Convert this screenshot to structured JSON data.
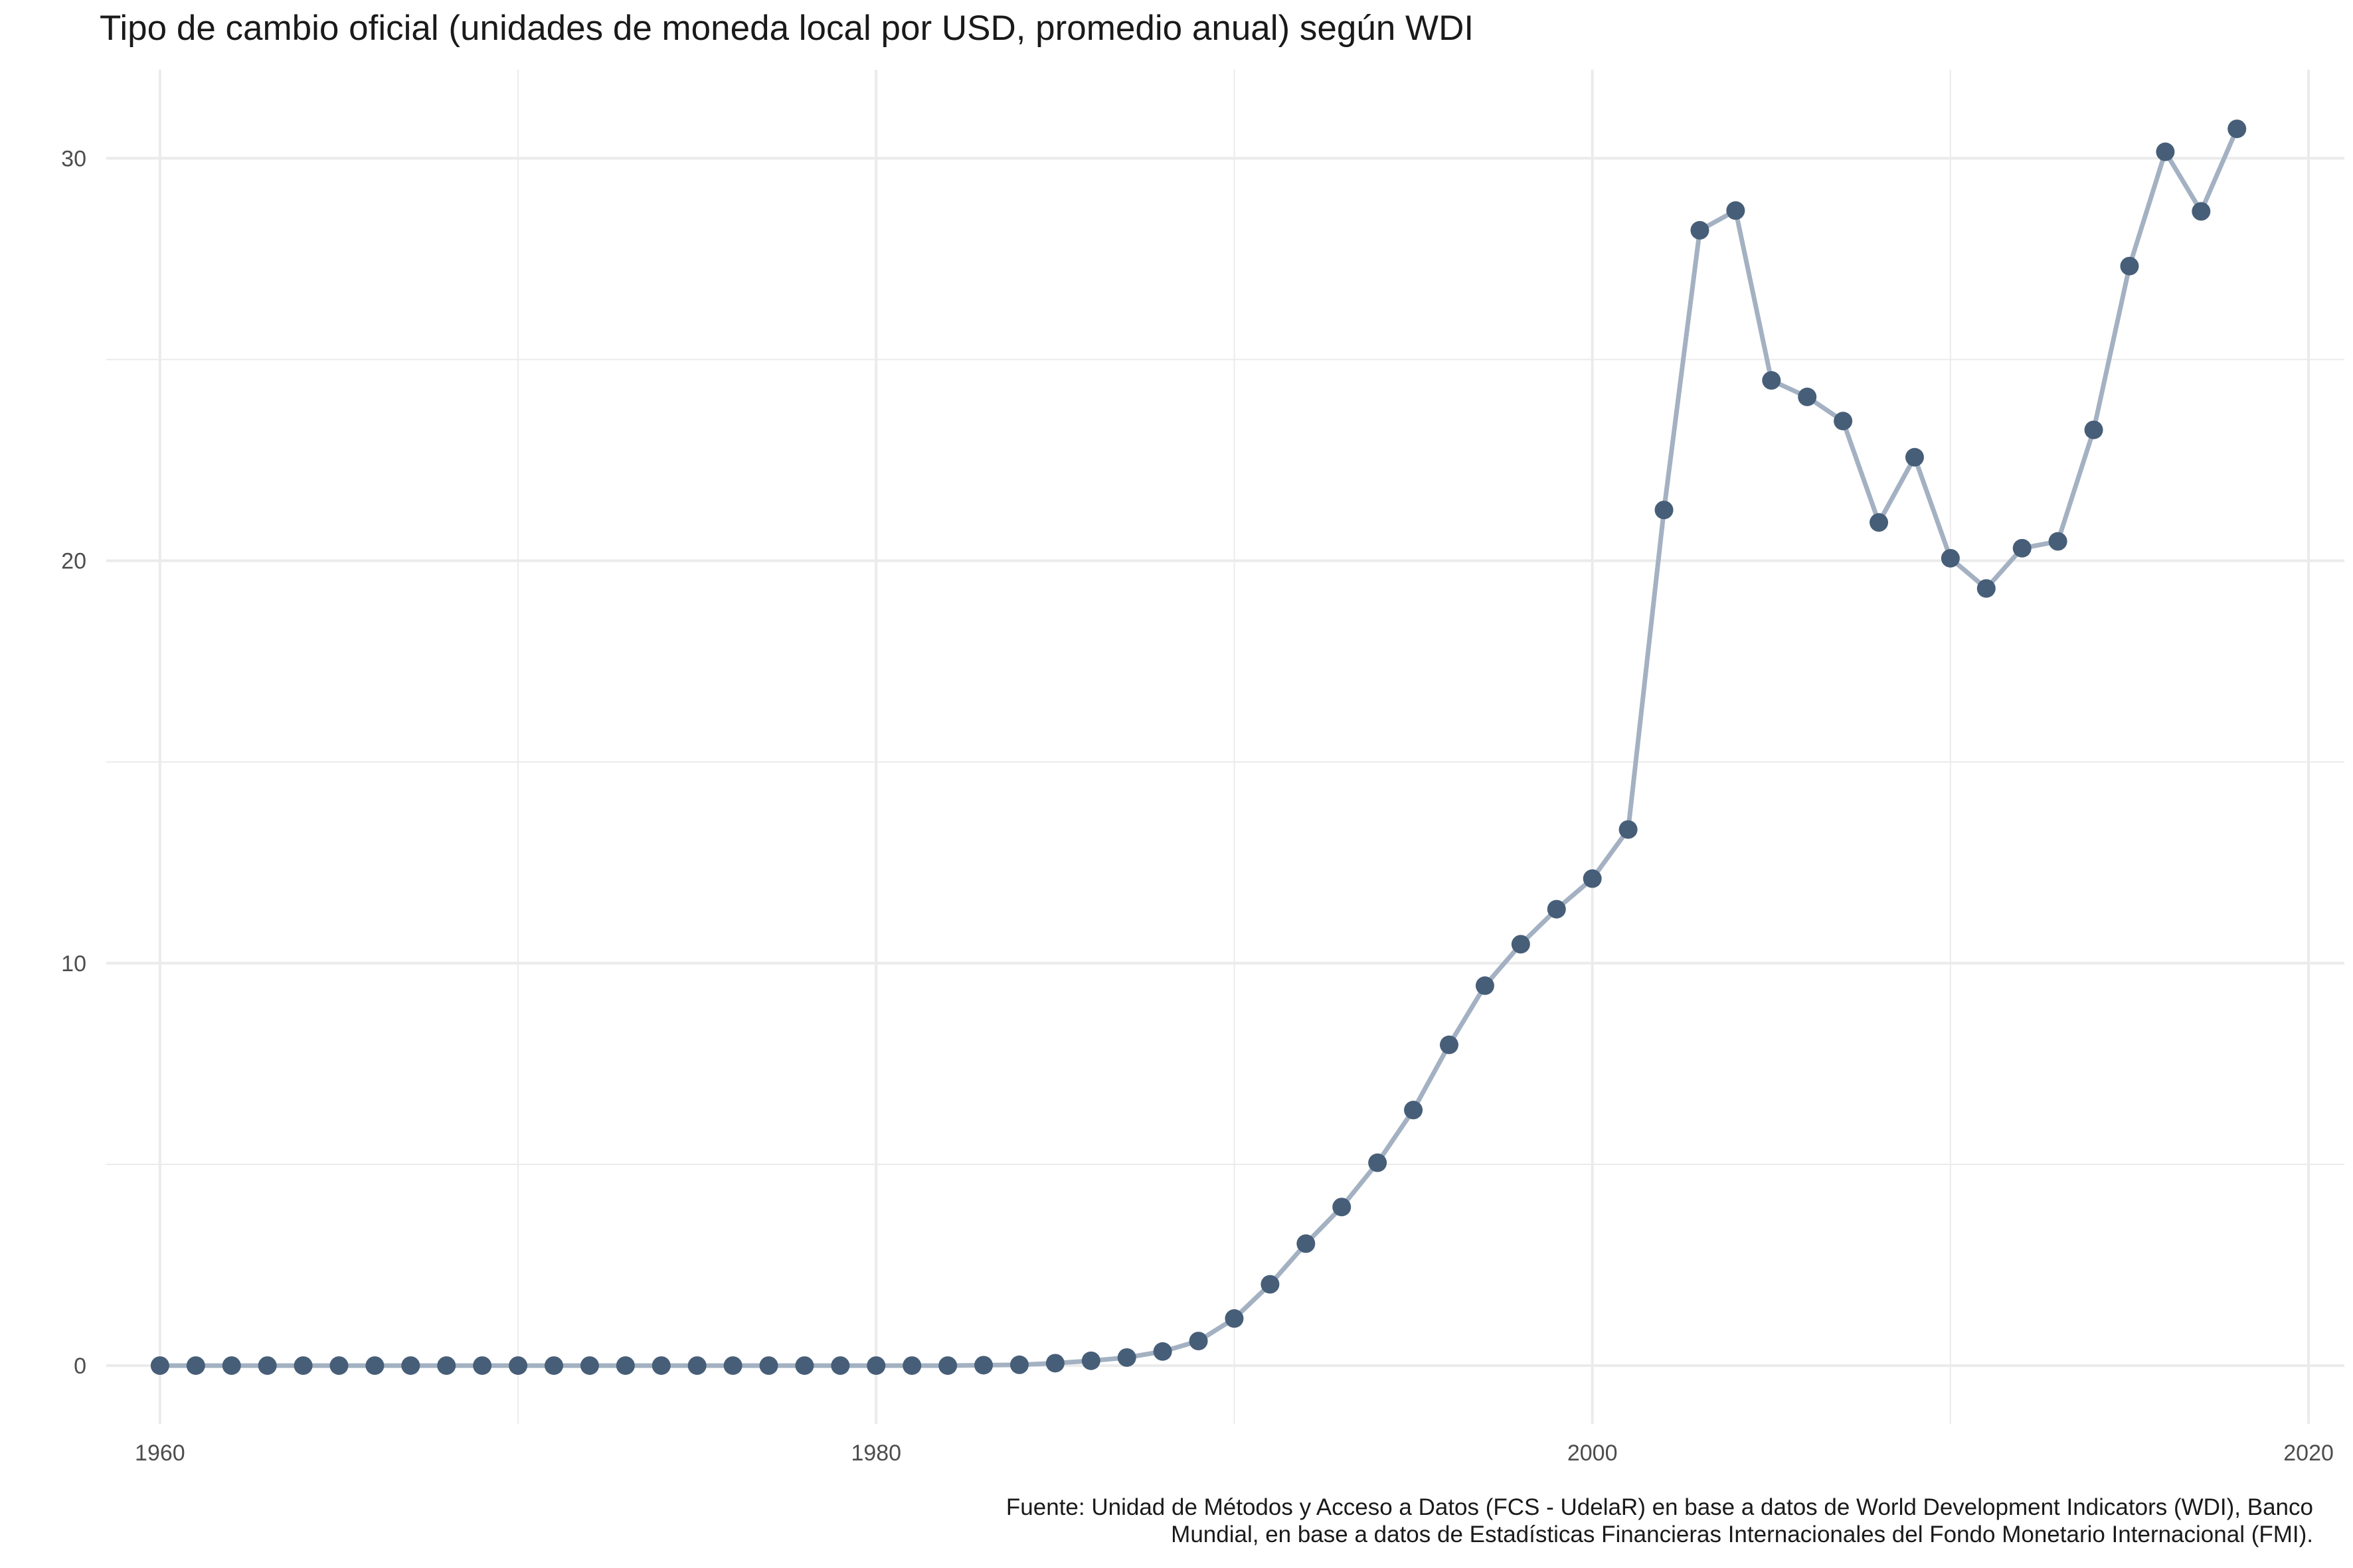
{
  "chart_data": {
    "type": "line",
    "title": "Tipo de cambio oficial (unidades de moneda local por USD, promedio anual) según WDI",
    "xlabel": "",
    "ylabel": "",
    "xlim": [
      1958.5,
      2021
    ],
    "ylim": [
      -1.45,
      32.2
    ],
    "x_ticks": [
      1960,
      1980,
      2000,
      2020
    ],
    "y_ticks": [
      0,
      10,
      20,
      30
    ],
    "grid": true,
    "legend": "none",
    "colors": {
      "line": "#a3b1c2",
      "point": "#475e78",
      "grid": "#ebebeb"
    },
    "x": [
      1960,
      1961,
      1962,
      1963,
      1964,
      1965,
      1966,
      1967,
      1968,
      1969,
      1970,
      1971,
      1972,
      1973,
      1974,
      1975,
      1976,
      1977,
      1978,
      1979,
      1980,
      1981,
      1982,
      1983,
      1984,
      1985,
      1986,
      1987,
      1988,
      1989,
      1990,
      1991,
      1992,
      1993,
      1994,
      1995,
      1996,
      1997,
      1998,
      1999,
      2000,
      2001,
      2002,
      2003,
      2004,
      2005,
      2006,
      2007,
      2008,
      2009,
      2010,
      2011,
      2012,
      2013,
      2014,
      2015,
      2016,
      2017,
      2018
    ],
    "y": [
      0,
      0,
      0,
      0,
      0,
      0,
      0,
      0,
      0,
      0,
      0,
      0,
      0,
      0,
      0,
      0,
      0,
      0,
      0,
      0,
      0,
      0,
      0,
      0.01,
      0.02,
      0.06,
      0.12,
      0.2,
      0.35,
      0.61,
      1.17,
      2.02,
      3.03,
      3.94,
      5.04,
      6.35,
      7.97,
      9.44,
      10.47,
      11.34,
      12.1,
      13.32,
      21.26,
      28.21,
      28.7,
      24.48,
      24.07,
      23.47,
      20.95,
      22.57,
      20.06,
      19.31,
      20.31,
      20.48,
      23.25,
      27.32,
      30.16,
      28.68,
      30.73
    ]
  },
  "caption": {
    "line1": "Fuente: Unidad de Métodos y Acceso a Datos (FCS - UdelaR) en base a datos de World Development Indicators (WDI), Banco",
    "line2": "Mundial, en base a datos de Estadísticas Financieras Internacionales del Fondo Monetario Internacional (FMI)."
  }
}
